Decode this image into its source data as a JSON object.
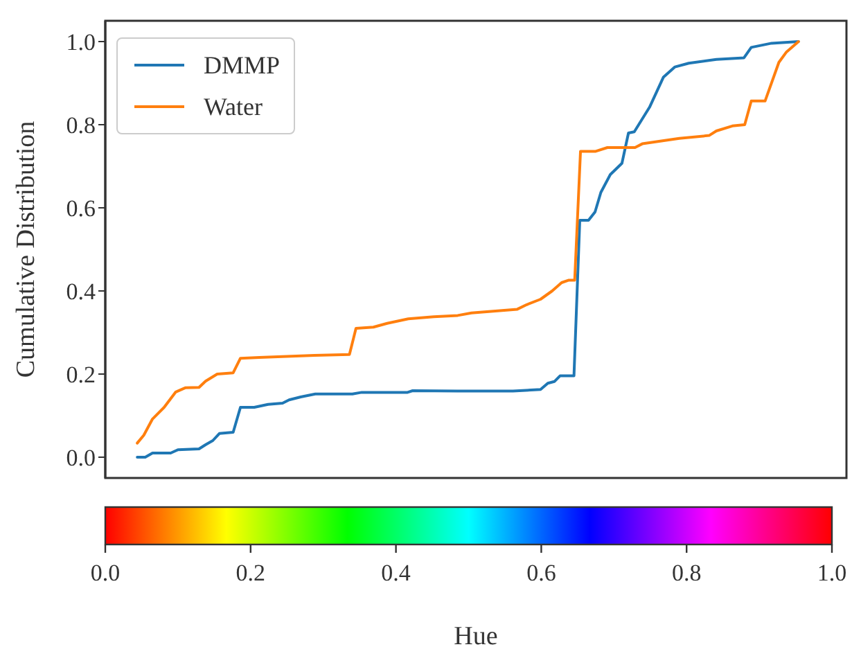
{
  "chart_data": {
    "type": "line",
    "xlabel": "Hue",
    "ylabel": "Cumulative Distribution",
    "xlim": [
      0,
      1.02
    ],
    "xticks": [
      {
        "value": 0,
        "label": "0.0"
      },
      0.2,
      0.4,
      0.6,
      0.8,
      {
        "value": 1,
        "label": "1.0"
      }
    ],
    "ylim": [
      -0.05,
      1.05
    ],
    "yticks": [
      {
        "value": 0,
        "label": "0.0"
      },
      0.2,
      0.4,
      0.6,
      0.8,
      {
        "value": 1,
        "label": "1.0"
      }
    ],
    "grid": false,
    "legend": "top left",
    "series": [
      {
        "name": "DMMP",
        "color": "#1f77b4",
        "x": [
          0.044,
          0.055,
          0.065,
          0.09,
          0.1,
          0.129,
          0.138,
          0.148,
          0.157,
          0.176,
          0.186,
          0.205,
          0.224,
          0.244,
          0.253,
          0.269,
          0.289,
          0.34,
          0.353,
          0.416,
          0.423,
          0.485,
          0.561,
          0.599,
          0.609,
          0.618,
          0.626,
          0.645,
          0.653,
          0.665,
          0.674,
          0.682,
          0.695,
          0.711,
          0.72,
          0.728,
          0.749,
          0.768,
          0.784,
          0.803,
          0.841,
          0.879,
          0.889,
          0.917,
          0.954
        ],
        "values": [
          0,
          0,
          0.01,
          0.01,
          0.018,
          0.02,
          0.03,
          0.04,
          0.057,
          0.06,
          0.12,
          0.12,
          0.127,
          0.13,
          0.138,
          0.145,
          0.152,
          0.152,
          0.156,
          0.156,
          0.16,
          0.159,
          0.159,
          0.163,
          0.178,
          0.182,
          0.196,
          0.196,
          0.57,
          0.57,
          0.59,
          0.637,
          0.68,
          0.707,
          0.78,
          0.783,
          0.842,
          0.914,
          0.939,
          0.948,
          0.957,
          0.961,
          0.986,
          0.996,
          1
        ]
      },
      {
        "name": "Water",
        "color": "#ff7f0e",
        "x": [
          0.044,
          0.053,
          0.065,
          0.081,
          0.097,
          0.11,
          0.129,
          0.138,
          0.154,
          0.176,
          0.186,
          0.212,
          0.288,
          0.336,
          0.345,
          0.369,
          0.388,
          0.417,
          0.452,
          0.485,
          0.504,
          0.567,
          0.58,
          0.599,
          0.615,
          0.628,
          0.638,
          0.646,
          0.654,
          0.675,
          0.691,
          0.729,
          0.739,
          0.79,
          0.831,
          0.841,
          0.863,
          0.88,
          0.889,
          0.908,
          0.927,
          0.937,
          0.954
        ],
        "values": [
          0.034,
          0.053,
          0.092,
          0.12,
          0.157,
          0.167,
          0.168,
          0.183,
          0.2,
          0.203,
          0.238,
          0.24,
          0.245,
          0.247,
          0.31,
          0.313,
          0.322,
          0.333,
          0.338,
          0.341,
          0.347,
          0.356,
          0.367,
          0.38,
          0.4,
          0.42,
          0.426,
          0.426,
          0.736,
          0.736,
          0.745,
          0.745,
          0.754,
          0.767,
          0.774,
          0.785,
          0.797,
          0.8,
          0.857,
          0.857,
          0.95,
          0.974,
          1
        ]
      }
    ]
  }
}
